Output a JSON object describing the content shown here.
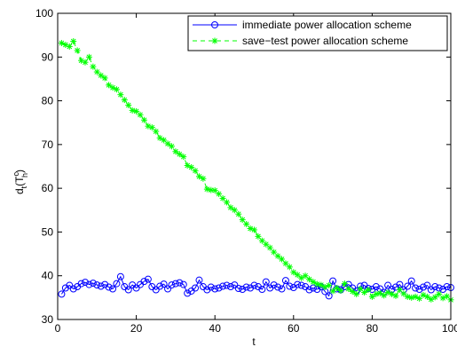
{
  "chart_data": {
    "type": "line",
    "title": "",
    "xlabel": "t",
    "ylabel_parts": {
      "base": "d",
      "sub_t": "t",
      "paren_open": "(T",
      "sup_c": "c",
      "sub_h": "h",
      "paren_close": ")"
    },
    "xlim": [
      0,
      100
    ],
    "ylim": [
      30,
      100
    ],
    "xticks": [
      0,
      20,
      40,
      60,
      80,
      100
    ],
    "yticks": [
      30,
      40,
      50,
      60,
      70,
      80,
      90,
      100
    ],
    "grid": false,
    "legend_position": "top-right",
    "series": [
      {
        "name": "immediate power allocation scheme",
        "color": "#0000ff",
        "marker": "circle",
        "linestyle": "solid",
        "x": [
          1,
          2,
          3,
          4,
          5,
          6,
          7,
          8,
          9,
          10,
          11,
          12,
          13,
          14,
          15,
          16,
          17,
          18,
          19,
          20,
          21,
          22,
          23,
          24,
          25,
          26,
          27,
          28,
          29,
          30,
          31,
          32,
          33,
          34,
          35,
          36,
          37,
          38,
          39,
          40,
          41,
          42,
          43,
          44,
          45,
          46,
          47,
          48,
          49,
          50,
          51,
          52,
          53,
          54,
          55,
          56,
          57,
          58,
          59,
          60,
          61,
          62,
          63,
          64,
          65,
          66,
          67,
          68,
          69,
          70,
          71,
          72,
          73,
          74,
          75,
          76,
          77,
          78,
          79,
          80,
          81,
          82,
          83,
          84,
          85,
          86,
          87,
          88,
          89,
          90,
          91,
          92,
          93,
          94,
          95,
          96,
          97,
          98,
          99,
          100
        ],
        "y": [
          35.8,
          37.2,
          37.8,
          37.0,
          37.5,
          38.2,
          38.5,
          38.0,
          38.3,
          37.9,
          37.6,
          38.0,
          37.4,
          37.0,
          38.2,
          39.8,
          37.5,
          36.8,
          37.9,
          37.2,
          38.0,
          38.7,
          39.2,
          37.5,
          36.8,
          37.6,
          38.1,
          37.0,
          37.9,
          38.2,
          38.4,
          38.0,
          36.0,
          36.5,
          37.2,
          39.0,
          37.5,
          36.8,
          37.4,
          37.0,
          37.2,
          37.6,
          37.8,
          37.5,
          37.9,
          37.1,
          36.9,
          37.4,
          37.2,
          37.8,
          37.5,
          36.9,
          38.6,
          37.2,
          37.9,
          37.4,
          37.0,
          38.9,
          37.6,
          37.3,
          38.0,
          37.8,
          37.5,
          36.8,
          37.2,
          36.9,
          37.5,
          36.4,
          35.4,
          38.8,
          37.0,
          36.8,
          37.5,
          38.0,
          37.2,
          36.5,
          37.6,
          37.8,
          37.1,
          36.9,
          37.5,
          37.0,
          36.2,
          37.8,
          36.9,
          37.4,
          38.0,
          36.8,
          37.6,
          38.8,
          37.2,
          36.9,
          37.4,
          37.8,
          36.8,
          37.5,
          37.2,
          36.9,
          37.5,
          37.3
        ]
      },
      {
        "name": "save−test power allocation scheme",
        "color": "#00ff00",
        "marker": "star",
        "linestyle": "dashed",
        "x": [
          1,
          2,
          3,
          4,
          5,
          6,
          7,
          8,
          9,
          10,
          11,
          12,
          13,
          14,
          15,
          16,
          17,
          18,
          19,
          20,
          21,
          22,
          23,
          24,
          25,
          26,
          27,
          28,
          29,
          30,
          31,
          32,
          33,
          34,
          35,
          36,
          37,
          38,
          39,
          40,
          41,
          42,
          43,
          44,
          45,
          46,
          47,
          48,
          49,
          50,
          51,
          52,
          53,
          54,
          55,
          56,
          57,
          58,
          59,
          60,
          61,
          62,
          63,
          64,
          65,
          66,
          67,
          68,
          69,
          70,
          71,
          72,
          73,
          74,
          75,
          76,
          77,
          78,
          79,
          80,
          81,
          82,
          83,
          84,
          85,
          86,
          87,
          88,
          89,
          90,
          91,
          92,
          93,
          94,
          95,
          96,
          97,
          98,
          99,
          100
        ],
        "y": [
          93.2,
          92.8,
          92.4,
          93.6,
          91.5,
          89.2,
          88.8,
          90.0,
          87.8,
          86.6,
          85.8,
          85.2,
          83.6,
          83.0,
          82.6,
          81.4,
          80.2,
          79.0,
          77.8,
          77.6,
          76.8,
          75.6,
          74.2,
          73.9,
          73.0,
          71.5,
          71.0,
          70.2,
          69.6,
          68.4,
          67.8,
          67.2,
          65.2,
          64.8,
          64.0,
          62.7,
          62.2,
          59.8,
          59.6,
          59.5,
          58.7,
          57.7,
          56.8,
          55.6,
          55.0,
          54.1,
          52.8,
          51.8,
          50.8,
          50.5,
          49.0,
          48.0,
          47.2,
          46.4,
          45.4,
          44.5,
          43.8,
          42.8,
          42.0,
          40.8,
          40.2,
          39.5,
          40.0,
          39.2,
          38.6,
          38.1,
          37.9,
          37.4,
          37.8,
          36.5,
          37.2,
          36.6,
          38.2,
          37.0,
          36.4,
          35.8,
          37.0,
          36.2,
          36.8,
          35.2,
          35.8,
          36.0,
          35.5,
          36.2,
          35.8,
          35.4,
          36.8,
          35.9,
          35.2,
          35.0,
          35.2,
          34.8,
          35.6,
          35.2,
          34.6,
          35.1,
          35.8,
          34.9,
          35.3,
          34.5
        ]
      }
    ]
  }
}
